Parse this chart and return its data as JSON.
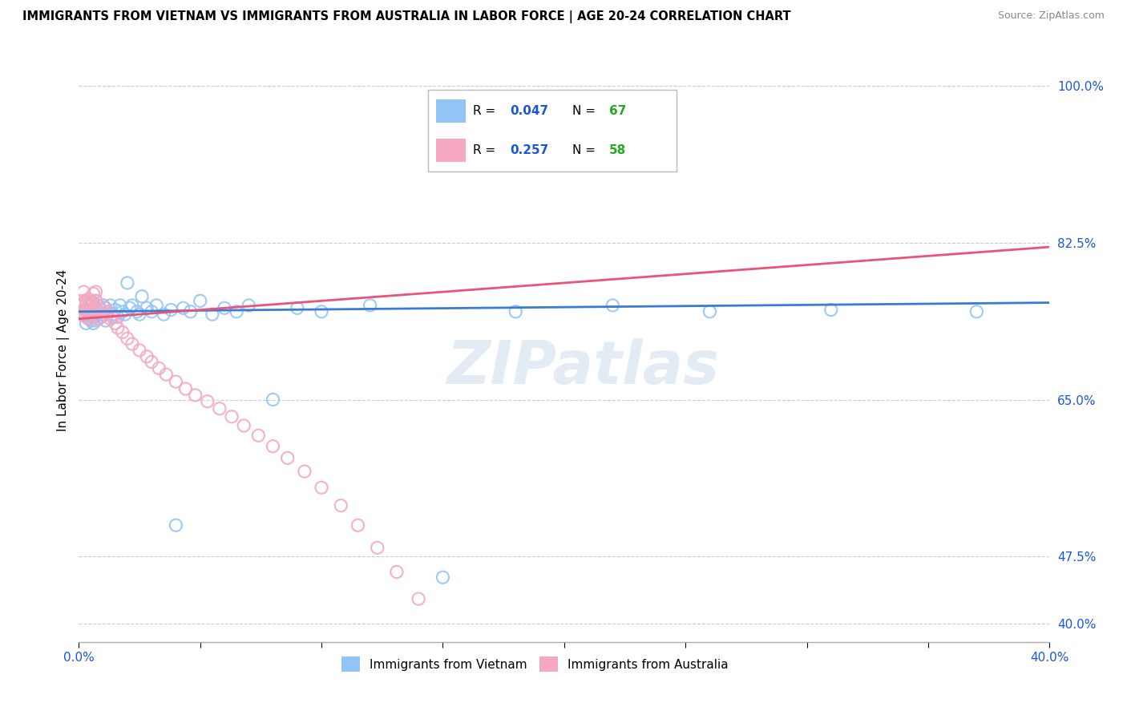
{
  "title": "IMMIGRANTS FROM VIETNAM VS IMMIGRANTS FROM AUSTRALIA IN LABOR FORCE | AGE 20-24 CORRELATION CHART",
  "source": "Source: ZipAtlas.com",
  "ylabel": "In Labor Force | Age 20-24",
  "ylabel_vals": [
    1.0,
    0.825,
    0.65,
    0.475,
    0.4
  ],
  "ylabel_ticks": [
    "100.0%",
    "82.5%",
    "65.0%",
    "47.5%",
    "40.0%"
  ],
  "xlim": [
    0.0,
    0.4
  ],
  "ylim": [
    0.38,
    1.03
  ],
  "r_vietnam": 0.047,
  "n_vietnam": 67,
  "r_australia": 0.257,
  "n_australia": 58,
  "color_vietnam": "#92c5f5",
  "color_australia": "#f5a8c0",
  "trend_vietnam": "#3a7bd5",
  "trend_australia": "#e8547a",
  "legend_r_color": "#1a56db",
  "legend_n_color": "#22aa22",
  "scatter_vietnam_x": [
    0.001,
    0.002,
    0.002,
    0.003,
    0.003,
    0.003,
    0.004,
    0.004,
    0.004,
    0.005,
    0.005,
    0.005,
    0.005,
    0.006,
    0.006,
    0.006,
    0.006,
    0.007,
    0.007,
    0.007,
    0.007,
    0.008,
    0.008,
    0.008,
    0.009,
    0.009,
    0.01,
    0.01,
    0.011,
    0.011,
    0.012,
    0.013,
    0.014,
    0.015,
    0.016,
    0.017,
    0.018,
    0.019,
    0.02,
    0.021,
    0.022,
    0.024,
    0.025,
    0.026,
    0.028,
    0.03,
    0.032,
    0.035,
    0.038,
    0.04,
    0.043,
    0.046,
    0.05,
    0.055,
    0.06,
    0.065,
    0.07,
    0.08,
    0.09,
    0.1,
    0.12,
    0.15,
    0.18,
    0.22,
    0.26,
    0.31,
    0.37
  ],
  "scatter_vietnam_y": [
    0.755,
    0.75,
    0.745,
    0.76,
    0.75,
    0.735,
    0.755,
    0.745,
    0.74,
    0.755,
    0.748,
    0.742,
    0.738,
    0.758,
    0.75,
    0.742,
    0.735,
    0.76,
    0.752,
    0.745,
    0.738,
    0.755,
    0.748,
    0.74,
    0.75,
    0.742,
    0.755,
    0.745,
    0.752,
    0.738,
    0.748,
    0.755,
    0.745,
    0.75,
    0.742,
    0.755,
    0.748,
    0.745,
    0.78,
    0.752,
    0.755,
    0.748,
    0.745,
    0.765,
    0.752,
    0.748,
    0.755,
    0.745,
    0.75,
    0.51,
    0.752,
    0.748,
    0.76,
    0.745,
    0.752,
    0.748,
    0.755,
    0.65,
    0.752,
    0.748,
    0.755,
    0.452,
    0.748,
    0.755,
    0.748,
    0.75,
    0.748
  ],
  "scatter_australia_x": [
    0.001,
    0.001,
    0.002,
    0.002,
    0.002,
    0.003,
    0.003,
    0.003,
    0.003,
    0.004,
    0.004,
    0.004,
    0.005,
    0.005,
    0.005,
    0.005,
    0.006,
    0.006,
    0.006,
    0.007,
    0.007,
    0.007,
    0.008,
    0.008,
    0.009,
    0.009,
    0.01,
    0.011,
    0.012,
    0.013,
    0.014,
    0.015,
    0.016,
    0.018,
    0.02,
    0.022,
    0.025,
    0.028,
    0.03,
    0.033,
    0.036,
    0.04,
    0.044,
    0.048,
    0.053,
    0.058,
    0.063,
    0.068,
    0.074,
    0.08,
    0.086,
    0.093,
    0.1,
    0.108,
    0.115,
    0.123,
    0.131,
    0.14
  ],
  "scatter_australia_y": [
    0.76,
    0.745,
    0.77,
    0.758,
    0.75,
    0.76,
    0.748,
    0.755,
    0.742,
    0.762,
    0.75,
    0.74,
    0.758,
    0.748,
    0.755,
    0.745,
    0.768,
    0.758,
    0.748,
    0.77,
    0.76,
    0.75,
    0.748,
    0.74,
    0.75,
    0.742,
    0.755,
    0.745,
    0.748,
    0.74,
    0.742,
    0.735,
    0.73,
    0.725,
    0.718,
    0.712,
    0.705,
    0.698,
    0.692,
    0.685,
    0.678,
    0.67,
    0.662,
    0.655,
    0.648,
    0.64,
    0.631,
    0.621,
    0.61,
    0.598,
    0.585,
    0.57,
    0.552,
    0.532,
    0.51,
    0.485,
    0.458,
    0.428
  ],
  "trend_vietnam_points": [
    [
      0.0,
      0.748
    ],
    [
      0.4,
      0.758
    ]
  ],
  "trend_australia_points": [
    [
      0.0,
      0.74
    ],
    [
      0.4,
      0.82
    ]
  ]
}
